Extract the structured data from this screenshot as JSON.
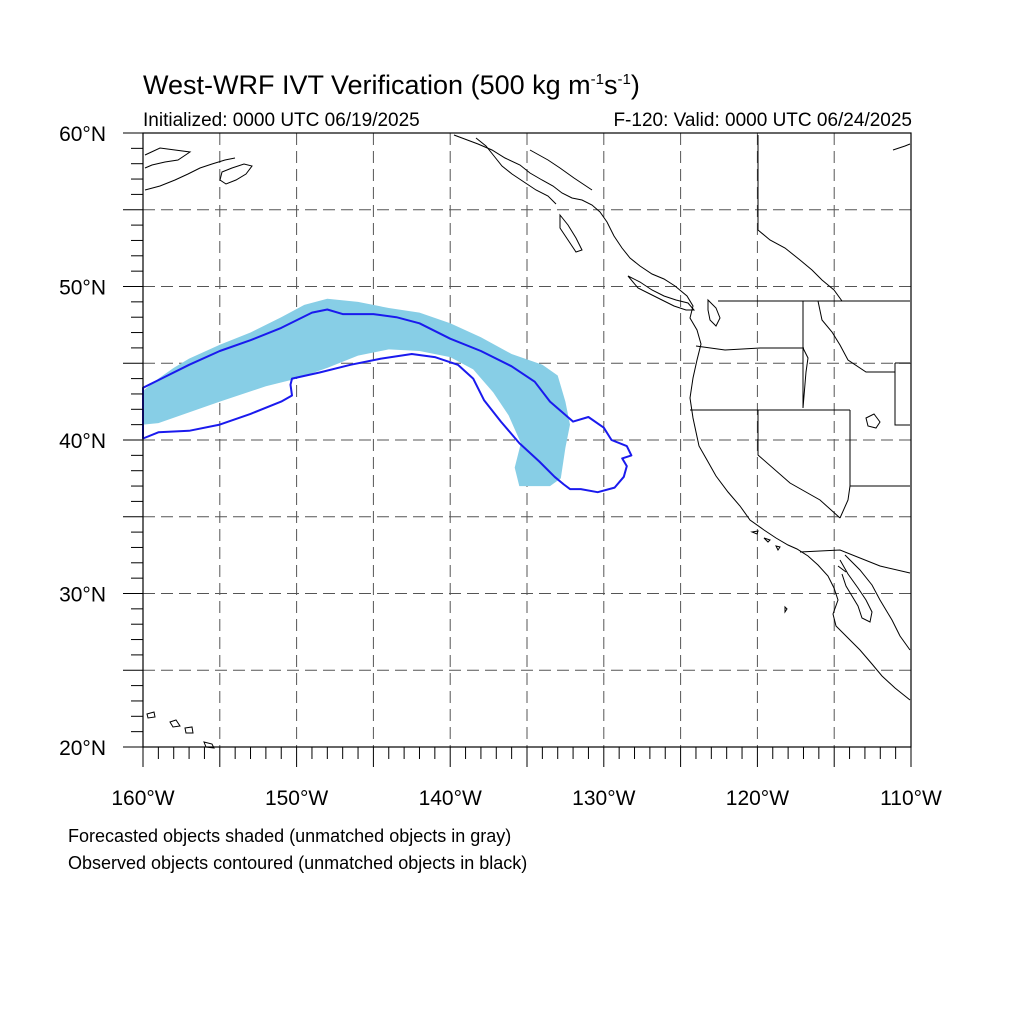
{
  "title": {
    "main": "West-WRF IVT Verification (500 kg m",
    "exp1": "-1",
    "mid": "s",
    "exp2": "-1",
    "end": ")"
  },
  "initialized": "Initialized: 0000 UTC 06/19/2025",
  "valid": "F-120: Valid: 0000 UTC 06/24/2025",
  "footer": {
    "line1": "Forecasted objects shaded (unmatched objects in gray)",
    "line2": "Observed objects contoured (unmatched objects in black)"
  },
  "map": {
    "lon_range": [
      -160,
      -110
    ],
    "lat_range": [
      20,
      60
    ],
    "lon_ticks": [
      "160°W",
      "150°W",
      "140°W",
      "130°W",
      "120°W",
      "110°W"
    ],
    "lat_ticks": [
      "20°N",
      "30°N",
      "40°N",
      "50°N",
      "60°N"
    ],
    "forecast_color": "#87cee6",
    "observed_color": "#1a1aee",
    "forecast_object": [
      [
        -160,
        43.2
      ],
      [
        -159,
        44.0
      ],
      [
        -158,
        44.7
      ],
      [
        -157,
        45.3
      ],
      [
        -155,
        46.2
      ],
      [
        -153,
        47.0
      ],
      [
        -151,
        48.0
      ],
      [
        -149.5,
        48.8
      ],
      [
        -148,
        49.2
      ],
      [
        -146,
        49.0
      ],
      [
        -144,
        48.6
      ],
      [
        -142,
        48.3
      ],
      [
        -140,
        47.6
      ],
      [
        -138,
        46.7
      ],
      [
        -136,
        45.6
      ],
      [
        -134,
        44.9
      ],
      [
        -133,
        44.2
      ],
      [
        -132.5,
        42.5
      ],
      [
        -132.2,
        41.0
      ],
      [
        -132.5,
        39.5
      ],
      [
        -132.8,
        37.5
      ],
      [
        -133.5,
        37.0
      ],
      [
        -135.5,
        37.0
      ],
      [
        -135.8,
        38.2
      ],
      [
        -135.4,
        39.8
      ],
      [
        -136.2,
        41.6
      ],
      [
        -137.2,
        43.1
      ],
      [
        -138.5,
        44.6
      ],
      [
        -140,
        45.4
      ],
      [
        -142,
        45.8
      ],
      [
        -144,
        45.9
      ],
      [
        -146,
        45.5
      ],
      [
        -148,
        44.7
      ],
      [
        -150,
        44.0
      ],
      [
        -152,
        43.5
      ],
      [
        -155,
        42.5
      ],
      [
        -157,
        41.8
      ],
      [
        -159,
        41.1
      ],
      [
        -160,
        41.0
      ]
    ],
    "observed_object": [
      [
        -160,
        40.1
      ],
      [
        -159,
        40.5
      ],
      [
        -157,
        40.6
      ],
      [
        -155,
        41.0
      ],
      [
        -153,
        41.7
      ],
      [
        -151,
        42.5
      ],
      [
        -150.3,
        42.9
      ],
      [
        -150.4,
        43.6
      ],
      [
        -150.3,
        44.0
      ],
      [
        -148.5,
        44.4
      ],
      [
        -146.5,
        44.9
      ],
      [
        -144.5,
        45.3
      ],
      [
        -142.5,
        45.6
      ],
      [
        -141,
        45.4
      ],
      [
        -139.5,
        44.9
      ],
      [
        -138.5,
        44.0
      ],
      [
        -137.8,
        42.6
      ],
      [
        -136.7,
        41.2
      ],
      [
        -135.5,
        39.8
      ],
      [
        -134.2,
        38.6
      ],
      [
        -133.2,
        37.6
      ],
      [
        -132.6,
        37.1
      ],
      [
        -132.2,
        36.8
      ],
      [
        -131.5,
        36.8
      ],
      [
        -130.4,
        36.6
      ],
      [
        -129.3,
        36.9
      ],
      [
        -128.7,
        37.6
      ],
      [
        -128.5,
        38.3
      ],
      [
        -128.8,
        38.8
      ],
      [
        -128.2,
        39.0
      ],
      [
        -128.5,
        39.6
      ],
      [
        -129.5,
        40.0
      ],
      [
        -130,
        40.8
      ],
      [
        -131,
        41.5
      ],
      [
        -132,
        41.2
      ],
      [
        -133.5,
        42.5
      ],
      [
        -134.5,
        43.8
      ],
      [
        -136,
        44.8
      ],
      [
        -138,
        45.8
      ],
      [
        -140,
        46.6
      ],
      [
        -142,
        47.6
      ],
      [
        -143.5,
        48.0
      ],
      [
        -145,
        48.2
      ],
      [
        -147,
        48.2
      ],
      [
        -148,
        48.5
      ],
      [
        -149,
        48.3
      ],
      [
        -151,
        47.3
      ],
      [
        -153,
        46.5
      ],
      [
        -155,
        45.8
      ],
      [
        -157,
        44.9
      ],
      [
        -159,
        43.9
      ],
      [
        -160,
        43.4
      ]
    ]
  }
}
